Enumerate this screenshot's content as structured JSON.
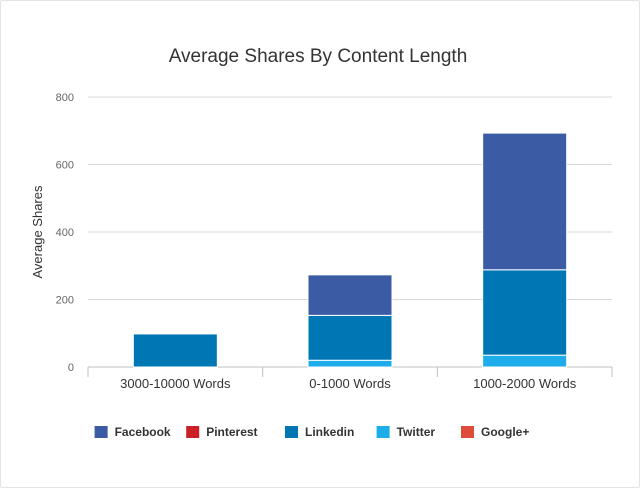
{
  "chart_data": {
    "type": "bar",
    "stacked": true,
    "title": "Average Shares By Content Length",
    "xlabel": "",
    "ylabel": "Average Shares",
    "ylim": [
      0,
      800
    ],
    "yticks": [
      0,
      200,
      400,
      600,
      800
    ],
    "grid": true,
    "legend_position": "bottom",
    "categories": [
      "3000-10000 Words",
      "0-1000 Words",
      "1000-2000 Words"
    ],
    "series": [
      {
        "name": "Facebook",
        "color": "#3b5ba5",
        "values": [
          0,
          120,
          405
        ]
      },
      {
        "name": "Pinterest",
        "color": "#cb2027",
        "values": [
          0,
          0,
          0
        ]
      },
      {
        "name": "Linkedin",
        "color": "#0077b5",
        "values": [
          98,
          133,
          253
        ]
      },
      {
        "name": "Twitter",
        "color": "#1dadeb",
        "values": [
          0,
          20,
          35
        ]
      },
      {
        "name": "Google+",
        "color": "#dd4b39",
        "values": [
          0,
          0,
          0
        ]
      }
    ]
  }
}
